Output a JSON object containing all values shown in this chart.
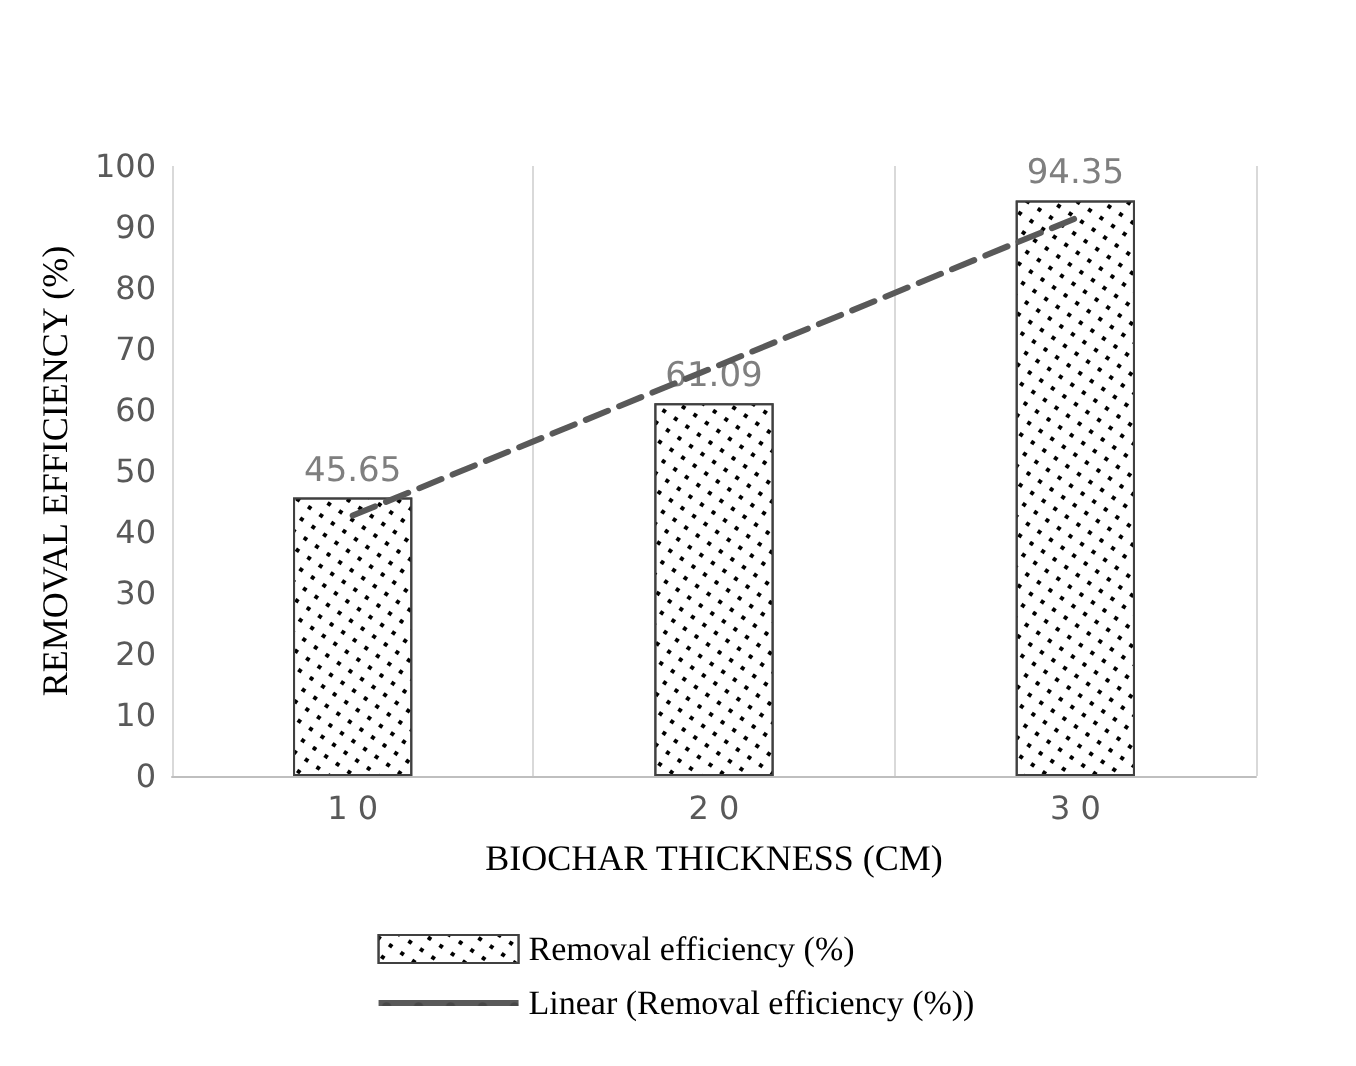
{
  "chart_data": {
    "type": "bar",
    "categories": [
      "10",
      "20",
      "30"
    ],
    "series": [
      {
        "name": "Removal efficiency (%)",
        "color": "#ffffff",
        "values": [
          45.65,
          61.09,
          94.35
        ],
        "data_labels": true
      },
      {
        "type": "line",
        "name": "Linear (Removal efficiency (%))",
        "color": "#595959",
        "x": [
          "10",
          "20",
          "30"
        ],
        "values": [
          42.7,
          67.0,
          91.4
        ],
        "line_style": "dashed",
        "marker": "none"
      }
    ],
    "xlabel": "BIOCHAR THICKNESS (CM)",
    "ylabel": "REMOVAL EFFICIENCY (%)",
    "ylim": [
      0,
      100
    ],
    "yticks": [
      0,
      10,
      20,
      30,
      40,
      50,
      60,
      70,
      80,
      90,
      100
    ],
    "grid": "x",
    "legend": "bottom"
  }
}
